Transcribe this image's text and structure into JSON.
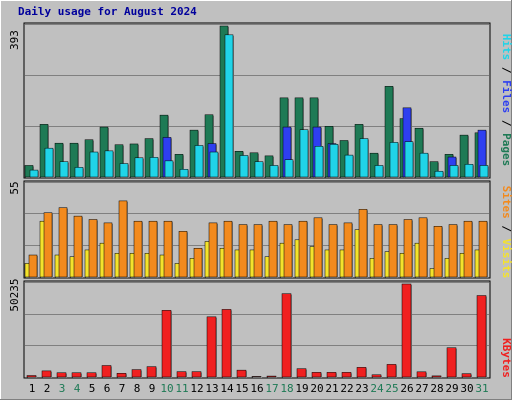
{
  "chart_data": [
    {
      "type": "bar",
      "title": "Daily usage for August 2024",
      "categories": [
        "1",
        "2",
        "3",
        "4",
        "5",
        "6",
        "7",
        "8",
        "9",
        "10",
        "11",
        "12",
        "13",
        "14",
        "15",
        "16",
        "17",
        "18",
        "19",
        "20",
        "21",
        "22",
        "23",
        "24",
        "25",
        "26",
        "27",
        "28",
        "29",
        "30",
        "31"
      ],
      "weekend_days": [
        "3",
        "4",
        "10",
        "11",
        "17",
        "18",
        "24",
        "25",
        "31"
      ],
      "ylim": [
        0,
        393
      ],
      "y_max_label": "393",
      "series": [
        {
          "name": "Hits",
          "color": "#1e7a55",
          "values": [
            30,
            137,
            88,
            88,
            97,
            130,
            84,
            86,
            100,
            161,
            59,
            122,
            162,
            393,
            67,
            63,
            55,
            206,
            206,
            206,
            132,
            95,
            137,
            62,
            236,
            152,
            127,
            40,
            59,
            109,
            115
          ]
        },
        {
          "name": "Files",
          "color": "#2e3ff0",
          "values": [
            0,
            0,
            0,
            0,
            0,
            0,
            0,
            0,
            0,
            103,
            0,
            0,
            87,
            0,
            0,
            0,
            0,
            130,
            0,
            130,
            87,
            0,
            0,
            0,
            0,
            180,
            0,
            0,
            52,
            0,
            122
          ]
        },
        {
          "name": "Pages",
          "color": "#20d4e8",
          "values": [
            18,
            75,
            40,
            25,
            65,
            68,
            35,
            50,
            51,
            42,
            20,
            82,
            65,
            370,
            56,
            40,
            30,
            45,
            123,
            80,
            85,
            57,
            100,
            30,
            90,
            92,
            62,
            15,
            30,
            33,
            30
          ]
        }
      ],
      "legend": [
        "Hits",
        "/",
        "Files",
        "/",
        "Pages"
      ]
    },
    {
      "type": "bar",
      "categories": [
        "1",
        "2",
        "3",
        "4",
        "5",
        "6",
        "7",
        "8",
        "9",
        "10",
        "11",
        "12",
        "13",
        "14",
        "15",
        "16",
        "17",
        "18",
        "19",
        "20",
        "21",
        "22",
        "23",
        "24",
        "25",
        "26",
        "27",
        "28",
        "29",
        "30",
        "31"
      ],
      "ylim": [
        0,
        55
      ],
      "y_max_label": "55",
      "series": [
        {
          "name": "Visits",
          "color": "#f4e22c",
          "values": [
            8,
            33,
            13,
            12,
            16,
            20,
            14,
            14,
            14,
            13,
            8,
            11,
            21,
            17,
            16,
            16,
            12,
            20,
            22,
            18,
            16,
            16,
            28,
            11,
            15,
            14,
            20,
            5,
            11,
            14,
            16
          ]
        },
        {
          "name": "Sites",
          "color": "#f28a1d",
          "values": [
            13,
            38,
            41,
            36,
            34,
            32,
            45,
            33,
            33,
            33,
            27,
            17,
            32,
            33,
            31,
            31,
            33,
            31,
            33,
            35,
            31,
            32,
            40,
            31,
            31,
            34,
            35,
            30,
            31,
            33,
            33
          ]
        }
      ],
      "legend": [
        "Sites",
        "/",
        "Visits"
      ]
    },
    {
      "type": "bar",
      "categories": [
        "1",
        "2",
        "3",
        "4",
        "5",
        "6",
        "7",
        "8",
        "9",
        "10",
        "11",
        "12",
        "13",
        "14",
        "15",
        "16",
        "17",
        "18",
        "19",
        "20",
        "21",
        "22",
        "23",
        "24",
        "25",
        "26",
        "27",
        "28",
        "29",
        "30",
        "31"
      ],
      "ylim": [
        0,
        50235
      ],
      "y_max_label": "50235",
      "series": [
        {
          "name": "KBytes",
          "color": "#f02020",
          "values": [
            800,
            3300,
            2300,
            2300,
            2300,
            6200,
            2000,
            4000,
            5600,
            36000,
            2900,
            2900,
            32500,
            36500,
            3700,
            300,
            500,
            45000,
            4500,
            2500,
            2500,
            2500,
            5200,
            1200,
            6800,
            50235,
            2800,
            600,
            15800,
            1800,
            44000
          ]
        }
      ],
      "legend": [
        "KBytes"
      ]
    }
  ]
}
